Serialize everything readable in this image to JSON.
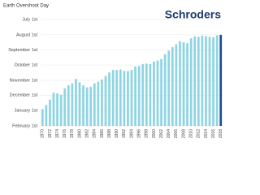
{
  "chart_data": {
    "type": "bar",
    "title": "Earth Overshoot Day",
    "brand": "Schroders",
    "categories": [
      "1970",
      null,
      "1972",
      null,
      "1974",
      null,
      "1976",
      null,
      "1978",
      null,
      "1980",
      null,
      "1982",
      null,
      "1984",
      null,
      "1986",
      null,
      "1988",
      null,
      "1990",
      null,
      "1992",
      null,
      "1994",
      null,
      "1996",
      null,
      "1998",
      null,
      "2000",
      null,
      "2002",
      null,
      "2004",
      null,
      "2006",
      null,
      "2008",
      null,
      "2010",
      null,
      "2012",
      null,
      "2014",
      null,
      "2016",
      null,
      "2018"
    ],
    "values": [
      363,
      355,
      344,
      330,
      331,
      334,
      321,
      315,
      311,
      302,
      309,
      315,
      319,
      318,
      311,
      308,
      303,
      296,
      289,
      284,
      284,
      283,
      286,
      286,
      284,
      277,
      276,
      272,
      271,
      272,
      267,
      265,
      262,
      252,
      245,
      238,
      232,
      226,
      228,
      230,
      220,
      216,
      217,
      215,
      216,
      217,
      218,
      214,
      213
    ],
    "colors": [
      "#8fd4e2",
      "#8fd4e2",
      "#8fd4e2",
      "#8fd4e2",
      "#8fd4e2",
      "#8fd4e2",
      "#8fd4e2",
      "#8fd4e2",
      "#8fd4e2",
      "#8fd4e2",
      "#8fd4e2",
      "#8fd4e2",
      "#8fd4e2",
      "#8fd4e2",
      "#8fd4e2",
      "#8fd4e2",
      "#8fd4e2",
      "#8fd4e2",
      "#8fd4e2",
      "#8fd4e2",
      "#8fd4e2",
      "#8fd4e2",
      "#8fd4e2",
      "#8fd4e2",
      "#8fd4e2",
      "#8fd4e2",
      "#8fd4e2",
      "#8fd4e2",
      "#8fd4e2",
      "#8fd4e2",
      "#8fd4e2",
      "#8fd4e2",
      "#8fd4e2",
      "#8fd4e2",
      "#8fd4e2",
      "#8fd4e2",
      "#8fd4e2",
      "#8fd4e2",
      "#8fd4e2",
      "#8fd4e2",
      "#8fd4e2",
      "#8fd4e2",
      "#8fd4e2",
      "#8fd4e2",
      "#8fd4e2",
      "#8fd4e2",
      "#8fd4e2",
      "#8fd4e2",
      "#1c4f94"
    ],
    "ylim": [
      397,
      182
    ],
    "yticks": [
      {
        "value": 182,
        "label": "July 1st"
      },
      {
        "value": 213,
        "label": "August 1st"
      },
      {
        "value": 244,
        "label": "September 1st"
      },
      {
        "value": 274,
        "label": "October 1st"
      },
      {
        "value": 305,
        "label": "November 1st"
      },
      {
        "value": 335,
        "label": "December 1st"
      },
      {
        "value": 366,
        "label": "January 1st"
      },
      {
        "value": 397,
        "label": "February 1st"
      }
    ],
    "grid": true
  }
}
